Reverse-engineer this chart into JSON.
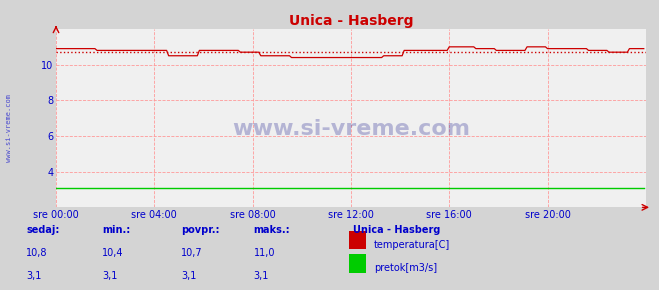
{
  "title": "Unica - Hasberg",
  "bg_color": "#d4d4d4",
  "plot_bg_color": "#f0f0f0",
  "grid_color": "#ff9999",
  "xlabel_color": "#0000cc",
  "ylabel_color": "#0000cc",
  "title_color": "#cc0000",
  "xlim": [
    0,
    288
  ],
  "ylim": [
    2.0,
    12.0
  ],
  "yticks": [
    4,
    6,
    8,
    10
  ],
  "xtick_labels": [
    "sre 00:00",
    "sre 04:00",
    "sre 08:00",
    "sre 12:00",
    "sre 16:00",
    "sre 20:00"
  ],
  "xtick_positions": [
    0,
    48,
    96,
    144,
    192,
    240
  ],
  "temp_color": "#cc0000",
  "flow_color": "#00cc00",
  "avg_value": 10.7,
  "watermark": "www.si-vreme.com",
  "watermark_color": "#1a1a8c",
  "legend_title": "Unica - Hasberg",
  "legend_color": "#0000cc",
  "footer_labels": [
    "sedaj:",
    "min.:",
    "povpr.:",
    "maks.:"
  ],
  "footer_temp": [
    "10,8",
    "10,4",
    "10,7",
    "11,0"
  ],
  "footer_flow": [
    "3,1",
    "3,1",
    "3,1",
    "3,1"
  ],
  "footer_color": "#0000cc",
  "temp_label": "temperatura[C]",
  "flow_label": "pretok[m3/s]",
  "sidebar_text": "www.si-vreme.com",
  "sidebar_color": "#0000cc"
}
